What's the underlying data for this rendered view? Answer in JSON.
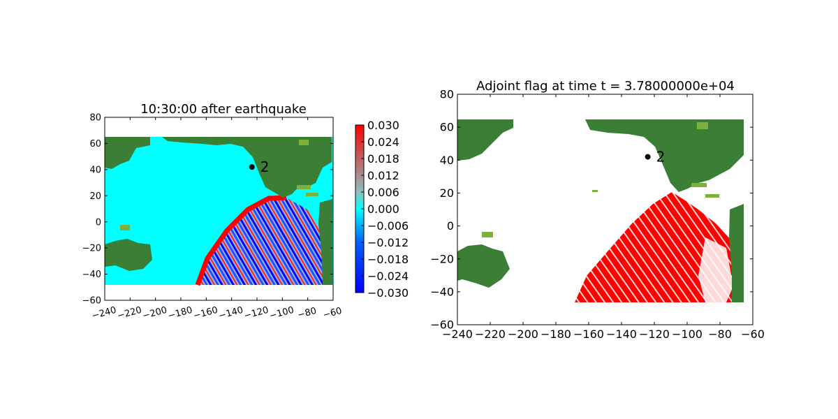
{
  "colors": {
    "land": "#3a7f35",
    "land_shallow": "#7ab23c",
    "ocean_rest": "#00ffff",
    "wave_positive": "#ff0000",
    "wave_negative": "#0000ff",
    "flag": "#ff0000",
    "marker": "#000000"
  },
  "chart_data": [
    {
      "type": "heatmap",
      "title": "10:30:00 after earthquake",
      "xlabel": "",
      "ylabel": "",
      "xlim": [
        -240,
        -60
      ],
      "ylim": [
        -60,
        80
      ],
      "x_ticks": [
        "−240",
        "−220",
        "−200",
        "−180",
        "−160",
        "−140",
        "−120",
        "−100",
        "−80",
        "−60"
      ],
      "y_ticks": [
        "80",
        "60",
        "40",
        "20",
        "0",
        "−20",
        "−40",
        "−60"
      ],
      "x_ticks_rotated": true,
      "grid": false,
      "domain_extent": {
        "lon": [
          -245,
          -65
        ],
        "lat": [
          -47,
          65
        ]
      },
      "marker": {
        "label": "2",
        "lon": -124,
        "lat": 42
      },
      "colorbar": {
        "range": [
          -0.03,
          0.03
        ],
        "colormap": "blue-cyan-red",
        "ticks": [
          "0.030",
          "0.024",
          "0.018",
          "0.012",
          "0.006",
          "0.000",
          "−0.006",
          "−0.012",
          "−0.018",
          "−0.024",
          "−0.030"
        ]
      }
    },
    {
      "type": "heatmap",
      "title": "Adjoint flag at time t = 3.78000000e+04",
      "xlabel": "",
      "ylabel": "",
      "xlim": [
        -240,
        -60
      ],
      "ylim": [
        -60,
        80
      ],
      "x_ticks": [
        "−240",
        "−220",
        "−200",
        "−180",
        "−160",
        "−140",
        "−120",
        "−100",
        "−80",
        "−60"
      ],
      "y_ticks": [
        "80",
        "60",
        "40",
        "20",
        "0",
        "−20",
        "−40",
        "−60"
      ],
      "x_ticks_rotated": false,
      "grid": false,
      "domain_extent": {
        "lon": [
          -240,
          -65
        ],
        "lat": [
          -47,
          65
        ]
      },
      "marker": {
        "label": "2",
        "lon": -124,
        "lat": 42
      }
    }
  ]
}
